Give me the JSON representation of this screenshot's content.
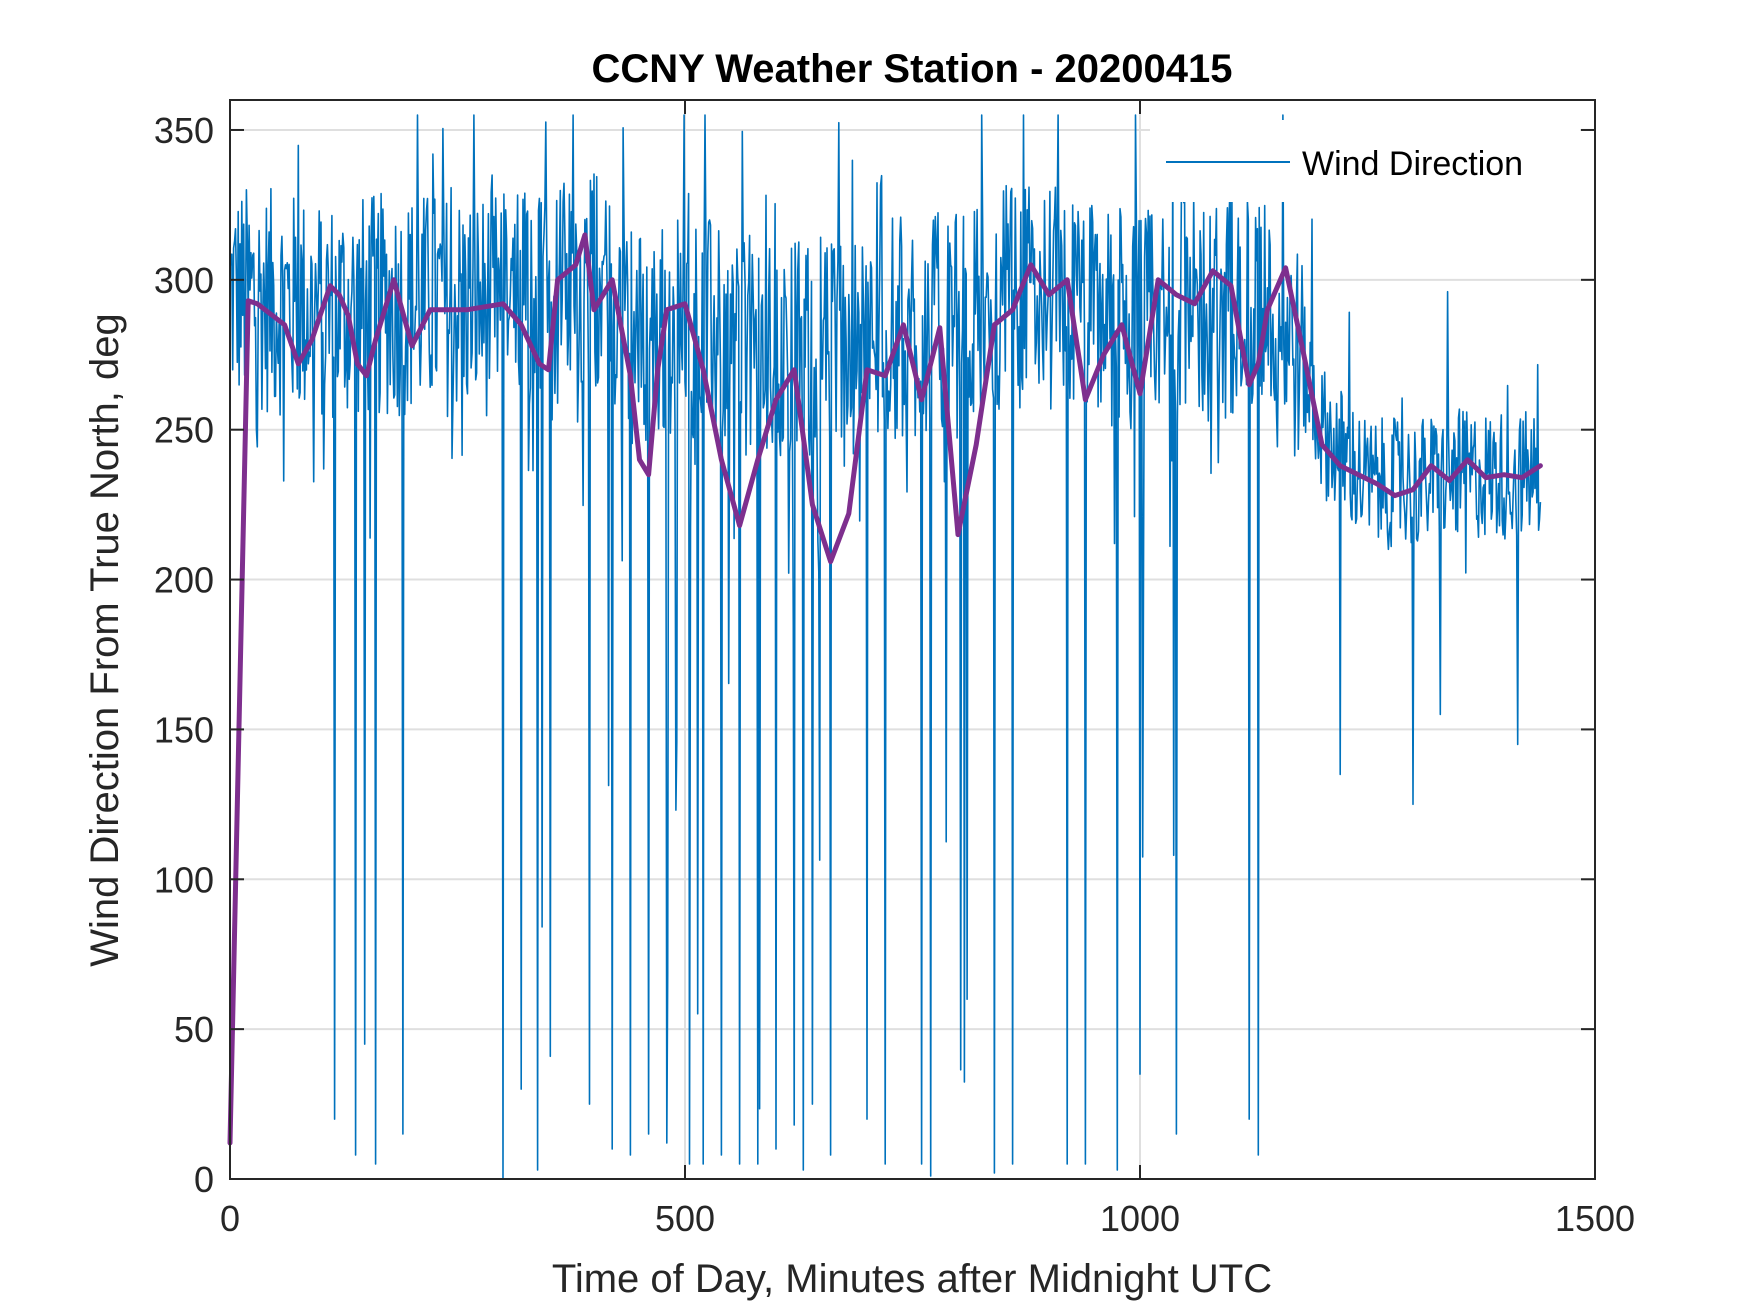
{
  "chart_data": {
    "type": "line",
    "title": "CCNY Weather Station - 20200415",
    "xlabel": "Time of Day, Minutes after Midnight UTC",
    "ylabel": "Wind Direction From True North, deg",
    "xlim": [
      0,
      1500
    ],
    "ylim": [
      0,
      360
    ],
    "xticks": [
      0,
      500,
      1000,
      1500
    ],
    "yticks": [
      0,
      50,
      100,
      150,
      200,
      250,
      300,
      350
    ],
    "grid": true,
    "legend": {
      "position": "top-right",
      "entries": [
        "Wind Direction"
      ]
    },
    "series": [
      {
        "name": "Wind Direction",
        "color": "#0072BD",
        "x_start": 0,
        "x_end": 1440,
        "x_step": 1,
        "median_envelope": [
          [
            0,
            295
          ],
          [
            100,
            290
          ],
          [
            200,
            292
          ],
          [
            300,
            292
          ],
          [
            360,
            295
          ],
          [
            400,
            300
          ],
          [
            450,
            280
          ],
          [
            500,
            285
          ],
          [
            550,
            280
          ],
          [
            600,
            275
          ],
          [
            650,
            275
          ],
          [
            700,
            280
          ],
          [
            750,
            285
          ],
          [
            800,
            285
          ],
          [
            850,
            295
          ],
          [
            900,
            295
          ],
          [
            950,
            288
          ],
          [
            1000,
            285
          ],
          [
            1050,
            290
          ],
          [
            1100,
            290
          ],
          [
            1150,
            290
          ],
          [
            1180,
            270
          ],
          [
            1200,
            250
          ],
          [
            1250,
            232
          ],
          [
            1300,
            232
          ],
          [
            1350,
            235
          ],
          [
            1440,
            235
          ]
        ],
        "spikes": [
          [
            115,
            20
          ],
          [
            138,
            8
          ],
          [
            148,
            45
          ],
          [
            160,
            5
          ],
          [
            190,
            15
          ],
          [
            300,
            0
          ],
          [
            320,
            30
          ],
          [
            338,
            3
          ],
          [
            395,
            25
          ],
          [
            420,
            10
          ],
          [
            440,
            8
          ],
          [
            460,
            15
          ],
          [
            480,
            12
          ],
          [
            505,
            5
          ],
          [
            520,
            5
          ],
          [
            540,
            8
          ],
          [
            560,
            5
          ],
          [
            580,
            5
          ],
          [
            600,
            10
          ],
          [
            620,
            18
          ],
          [
            630,
            3
          ],
          [
            640,
            25
          ],
          [
            660,
            8
          ],
          [
            700,
            20
          ],
          [
            720,
            5
          ],
          [
            760,
            5
          ],
          [
            770,
            1
          ],
          [
            810,
            60
          ],
          [
            840,
            2
          ],
          [
            860,
            5
          ],
          [
            920,
            5
          ],
          [
            940,
            5
          ],
          [
            975,
            3
          ],
          [
            1000,
            35
          ],
          [
            1040,
            15
          ],
          [
            1120,
            20
          ],
          [
            1130,
            8
          ]
        ],
        "minimum_dips": [
          [
            1220,
            135
          ],
          [
            1300,
            125
          ],
          [
            1330,
            155
          ],
          [
            1415,
            145
          ]
        ]
      },
      {
        "name": "",
        "color": "#7E2F8E",
        "x": [
          0,
          20,
          30,
          60,
          75,
          90,
          110,
          120,
          130,
          140,
          150,
          160,
          180,
          200,
          220,
          260,
          300,
          320,
          340,
          350,
          360,
          380,
          390,
          400,
          420,
          440,
          450,
          460,
          470,
          480,
          500,
          520,
          540,
          560,
          580,
          600,
          620,
          640,
          660,
          680,
          700,
          720,
          740,
          760,
          780,
          800,
          820,
          840,
          860,
          880,
          900,
          920,
          940,
          960,
          980,
          1000,
          1020,
          1040,
          1060,
          1080,
          1100,
          1120,
          1130,
          1140,
          1160,
          1180,
          1200,
          1220,
          1240,
          1260,
          1280,
          1300,
          1320,
          1340,
          1360,
          1380,
          1400,
          1420,
          1440
        ],
        "y": [
          12,
          293,
          292,
          285,
          272,
          280,
          298,
          295,
          288,
          272,
          268,
          280,
          300,
          278,
          290,
          290,
          292,
          285,
          272,
          270,
          300,
          305,
          315,
          290,
          300,
          268,
          240,
          235,
          270,
          290,
          292,
          270,
          240,
          218,
          240,
          260,
          270,
          225,
          206,
          222,
          270,
          268,
          285,
          260,
          284,
          215,
          245,
          285,
          290,
          305,
          295,
          300,
          260,
          275,
          285,
          262,
          300,
          295,
          292,
          303,
          298,
          265,
          272,
          290,
          304,
          275,
          245,
          238,
          235,
          232,
          228,
          230,
          238,
          233,
          240,
          234,
          235,
          234,
          238
        ]
      }
    ]
  }
}
